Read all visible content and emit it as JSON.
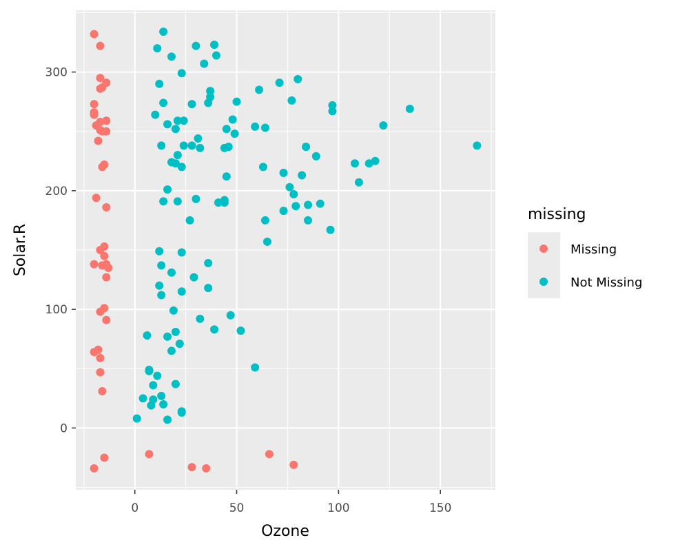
{
  "chart_data": {
    "type": "scatter",
    "title": "",
    "xlabel": "Ozone",
    "ylabel": "Solar.R",
    "xlim": [
      -29,
      177
    ],
    "ylim": [
      -52,
      352
    ],
    "x_ticks": [
      0,
      50,
      100,
      150
    ],
    "y_ticks": [
      0,
      100,
      200,
      300
    ],
    "x_tick_labels": [
      "0",
      "50",
      "100",
      "150"
    ],
    "y_tick_labels": [
      "0",
      "100",
      "200",
      "300"
    ],
    "grid": true,
    "legend_position": "right",
    "legend_title": "missing",
    "series": [
      {
        "name": "Missing",
        "color": "#F8766D",
        "points": [
          [
            -20,
            332
          ],
          [
            -17,
            322
          ],
          [
            -17,
            295
          ],
          [
            -14,
            291
          ],
          [
            -16,
            287
          ],
          [
            -17,
            286
          ],
          [
            -20,
            273
          ],
          [
            -20,
            266
          ],
          [
            -20,
            264
          ],
          [
            -14,
            259
          ],
          [
            -17,
            258
          ],
          [
            -19,
            255
          ],
          [
            -17,
            251
          ],
          [
            -14,
            250
          ],
          [
            -16,
            250
          ],
          [
            -18,
            242
          ],
          [
            -15,
            222
          ],
          [
            -16,
            220
          ],
          [
            -19,
            194
          ],
          [
            -14,
            186
          ],
          [
            -15,
            153
          ],
          [
            -17,
            150
          ],
          [
            -15,
            145
          ],
          [
            -14,
            138
          ],
          [
            -20,
            138
          ],
          [
            -16,
            137
          ],
          [
            -13,
            135
          ],
          [
            -14,
            127
          ],
          [
            -15,
            101
          ],
          [
            -17,
            98
          ],
          [
            -14,
            91
          ],
          [
            -18,
            66
          ],
          [
            -20,
            64
          ],
          [
            -17,
            59
          ],
          [
            -17,
            47
          ],
          [
            -16,
            31
          ],
          [
            -15,
            -25
          ],
          [
            -20,
            -34
          ],
          [
            7,
            -22
          ],
          [
            28,
            -33
          ],
          [
            35,
            -34
          ],
          [
            66,
            -22
          ],
          [
            78,
            -31
          ]
        ]
      },
      {
        "name": "Not Missing",
        "color": "#00BFC4",
        "points": [
          [
            14,
            334
          ],
          [
            11,
            320
          ],
          [
            30,
            322
          ],
          [
            39,
            323
          ],
          [
            40,
            314
          ],
          [
            18,
            313
          ],
          [
            34,
            307
          ],
          [
            23,
            299
          ],
          [
            12,
            290
          ],
          [
            37,
            284
          ],
          [
            61,
            285
          ],
          [
            71,
            291
          ],
          [
            80,
            294
          ],
          [
            37,
            279
          ],
          [
            77,
            276
          ],
          [
            14,
            274
          ],
          [
            28,
            273
          ],
          [
            36,
            274
          ],
          [
            50,
            275
          ],
          [
            97,
            272
          ],
          [
            97,
            267
          ],
          [
            10,
            264
          ],
          [
            48,
            260
          ],
          [
            135,
            269
          ],
          [
            21,
            259
          ],
          [
            24,
            259
          ],
          [
            16,
            256
          ],
          [
            59,
            254
          ],
          [
            64,
            253
          ],
          [
            20,
            252
          ],
          [
            45,
            252
          ],
          [
            49,
            248
          ],
          [
            31,
            244
          ],
          [
            122,
            255
          ],
          [
            13,
            238
          ],
          [
            24,
            238
          ],
          [
            28,
            238
          ],
          [
            32,
            236
          ],
          [
            44,
            236
          ],
          [
            46,
            237
          ],
          [
            84,
            237
          ],
          [
            168,
            238
          ],
          [
            21,
            230
          ],
          [
            89,
            229
          ],
          [
            18,
            224
          ],
          [
            20,
            223
          ],
          [
            23,
            220
          ],
          [
            63,
            220
          ],
          [
            108,
            223
          ],
          [
            115,
            223
          ],
          [
            118,
            225
          ],
          [
            73,
            215
          ],
          [
            82,
            213
          ],
          [
            45,
            212
          ],
          [
            110,
            207
          ],
          [
            76,
            203
          ],
          [
            16,
            201
          ],
          [
            78,
            197
          ],
          [
            14,
            191
          ],
          [
            21,
            191
          ],
          [
            30,
            193
          ],
          [
            41,
            190
          ],
          [
            44,
            192
          ],
          [
            44,
            190
          ],
          [
            79,
            187
          ],
          [
            85,
            188
          ],
          [
            91,
            189
          ],
          [
            73,
            183
          ],
          [
            27,
            175
          ],
          [
            64,
            175
          ],
          [
            85,
            175
          ],
          [
            96,
            167
          ],
          [
            65,
            157
          ],
          [
            12,
            149
          ],
          [
            23,
            148
          ],
          [
            36,
            139
          ],
          [
            13,
            137
          ],
          [
            18,
            131
          ],
          [
            29,
            127
          ],
          [
            12,
            120
          ],
          [
            36,
            118
          ],
          [
            13,
            112
          ],
          [
            23,
            115
          ],
          [
            19,
            99
          ],
          [
            47,
            95
          ],
          [
            32,
            92
          ],
          [
            39,
            83
          ],
          [
            52,
            82
          ],
          [
            20,
            81
          ],
          [
            6,
            78
          ],
          [
            16,
            77
          ],
          [
            22,
            71
          ],
          [
            18,
            65
          ],
          [
            59,
            51
          ],
          [
            7,
            49
          ],
          [
            7,
            48
          ],
          [
            11,
            44
          ],
          [
            20,
            37
          ],
          [
            9,
            36
          ],
          [
            4,
            25
          ],
          [
            9,
            24
          ],
          [
            13,
            27
          ],
          [
            8,
            19
          ],
          [
            14,
            20
          ],
          [
            23,
            14
          ],
          [
            23,
            13
          ],
          [
            1,
            8
          ],
          [
            16,
            7
          ]
        ]
      }
    ]
  }
}
